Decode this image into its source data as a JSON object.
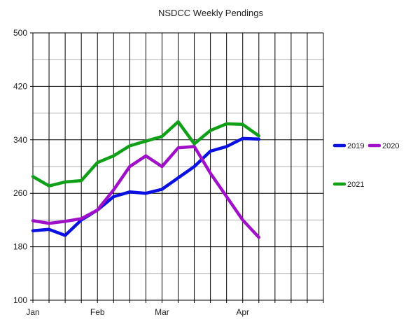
{
  "chart_data": {
    "type": "line",
    "title": "NSDCC Weekly Pendings",
    "xlabel": "",
    "ylabel": "",
    "ylim": [
      100,
      500
    ],
    "yticks": [
      100,
      180,
      260,
      340,
      420,
      500
    ],
    "x_tick_labels": [
      {
        "label": "Jan",
        "index": 0
      },
      {
        "label": "Feb",
        "index": 4
      },
      {
        "label": "Mar",
        "index": 8
      },
      {
        "label": "Apr",
        "index": 13
      }
    ],
    "num_slots": 18,
    "grid": true,
    "legend_position": "right",
    "series": [
      {
        "name": "2019",
        "color": "#0a10e0",
        "values": [
          204,
          206,
          197,
          220,
          235,
          255,
          262,
          260,
          266,
          283,
          300,
          323,
          330,
          342,
          341
        ]
      },
      {
        "name": "2020",
        "color": "#a010c8",
        "values": [
          219,
          215,
          218,
          222,
          235,
          265,
          300,
          316,
          300,
          328,
          330,
          290,
          255,
          220,
          194
        ]
      },
      {
        "name": "2021",
        "color": "#10a018",
        "values": [
          285,
          271,
          277,
          279,
          306,
          316,
          331,
          338,
          345,
          367,
          334,
          354,
          364,
          363,
          346
        ]
      }
    ]
  }
}
